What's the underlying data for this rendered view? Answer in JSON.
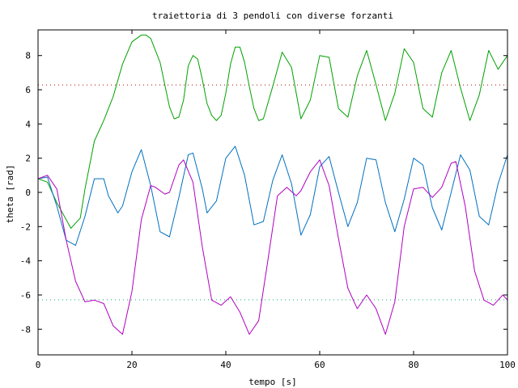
{
  "chart_data": {
    "type": "line",
    "title": "traiettoria di 3 pendoli con diverse forzanti",
    "xlabel": "tempo [s]",
    "ylabel": "theta [rad]",
    "xlim": [
      0,
      100
    ],
    "ylim": [
      -9.5,
      9.5
    ],
    "x_ticks": [
      0,
      20,
      40,
      60,
      80,
      100
    ],
    "y_ticks": [
      -8,
      -6,
      -4,
      -2,
      0,
      2,
      4,
      6,
      8
    ],
    "grid": false,
    "legend": "none",
    "reference_lines": [
      {
        "y": 6.283,
        "color": "#b40000",
        "style": "dotted"
      },
      {
        "y": -6.283,
        "color": "#00b46e",
        "style": "dotted"
      }
    ],
    "series": [
      {
        "color": "#00a000",
        "x": [
          0,
          2,
          4,
          7,
          9,
          10,
          12,
          14,
          16,
          18,
          20,
          22,
          23,
          24,
          26,
          28,
          29,
          30,
          31,
          32,
          33,
          34,
          35,
          36,
          37,
          38,
          39,
          40,
          41,
          42,
          43,
          44,
          45,
          46,
          47,
          48,
          50,
          52,
          54,
          56,
          58,
          60,
          62,
          64,
          66,
          68,
          70,
          72,
          74,
          76,
          78,
          80,
          82,
          84,
          86,
          88,
          90,
          92,
          94,
          96,
          98,
          100
        ],
        "y": [
          0.8,
          0.6,
          -0.6,
          -2.1,
          -1.5,
          0.2,
          3.0,
          4.2,
          5.6,
          7.5,
          8.8,
          9.2,
          9.2,
          9.0,
          7.6,
          5.0,
          4.3,
          4.4,
          5.4,
          7.4,
          8.0,
          7.8,
          6.6,
          5.2,
          4.5,
          4.2,
          4.5,
          5.8,
          7.5,
          8.5,
          8.5,
          7.6,
          6.2,
          4.9,
          4.2,
          4.3,
          6.2,
          8.2,
          7.3,
          4.3,
          5.4,
          8.0,
          7.9,
          4.9,
          4.4,
          6.8,
          8.3,
          6.3,
          4.2,
          5.8,
          8.4,
          7.6,
          4.9,
          4.4,
          7.0,
          8.3,
          6.1,
          4.2,
          5.7,
          8.3,
          7.2,
          8.0
        ]
      },
      {
        "color": "#0070c0",
        "x": [
          0,
          2,
          4,
          6,
          8,
          10,
          12,
          14,
          15,
          17,
          18,
          20,
          22,
          24,
          26,
          28,
          30,
          32,
          33,
          35,
          36,
          38,
          40,
          42,
          44,
          46,
          48,
          50,
          52,
          54,
          56,
          58,
          60,
          62,
          64,
          66,
          68,
          70,
          72,
          74,
          76,
          78,
          80,
          82,
          84,
          86,
          88,
          90,
          92,
          94,
          96,
          98,
          100
        ],
        "y": [
          0.8,
          0.9,
          -0.8,
          -2.8,
          -3.1,
          -1.4,
          0.8,
          0.8,
          -0.2,
          -1.2,
          -0.8,
          1.2,
          2.5,
          0.4,
          -2.3,
          -2.6,
          -0.3,
          2.2,
          2.3,
          0.2,
          -1.2,
          -0.5,
          2.0,
          2.7,
          1.0,
          -1.9,
          -1.7,
          0.7,
          2.2,
          0.5,
          -2.5,
          -1.3,
          1.5,
          2.1,
          0.0,
          -2.0,
          -0.6,
          2.0,
          1.9,
          -0.6,
          -2.3,
          -0.4,
          2.0,
          1.6,
          -0.9,
          -2.2,
          0.0,
          2.2,
          1.3,
          -1.4,
          -1.9,
          0.5,
          2.2
        ]
      },
      {
        "color": "#b000c0",
        "x": [
          0,
          2,
          4,
          6,
          8,
          10,
          12,
          14,
          16,
          18,
          20,
          22,
          24,
          25,
          27,
          28,
          30,
          31,
          33,
          35,
          37,
          39,
          41,
          43,
          45,
          47,
          49,
          51,
          53,
          55,
          56,
          58,
          60,
          62,
          64,
          66,
          68,
          70,
          72,
          74,
          76,
          78,
          80,
          82,
          84,
          86,
          88,
          89,
          91,
          93,
          95,
          97,
          99,
          100
        ],
        "y": [
          0.8,
          1.0,
          0.2,
          -2.8,
          -5.2,
          -6.4,
          -6.3,
          -6.5,
          -7.8,
          -8.3,
          -5.8,
          -1.6,
          0.4,
          0.3,
          -0.1,
          0.0,
          1.6,
          1.9,
          0.6,
          -3.2,
          -6.3,
          -6.6,
          -6.1,
          -7.0,
          -8.3,
          -7.5,
          -3.9,
          -0.2,
          0.3,
          -0.2,
          0.1,
          1.2,
          1.9,
          0.4,
          -2.7,
          -5.6,
          -6.8,
          -6.0,
          -6.8,
          -8.3,
          -6.4,
          -2.0,
          0.2,
          0.3,
          -0.3,
          0.3,
          1.7,
          1.8,
          -0.8,
          -4.6,
          -6.3,
          -6.6,
          -6.0,
          -6.3
        ]
      }
    ]
  }
}
